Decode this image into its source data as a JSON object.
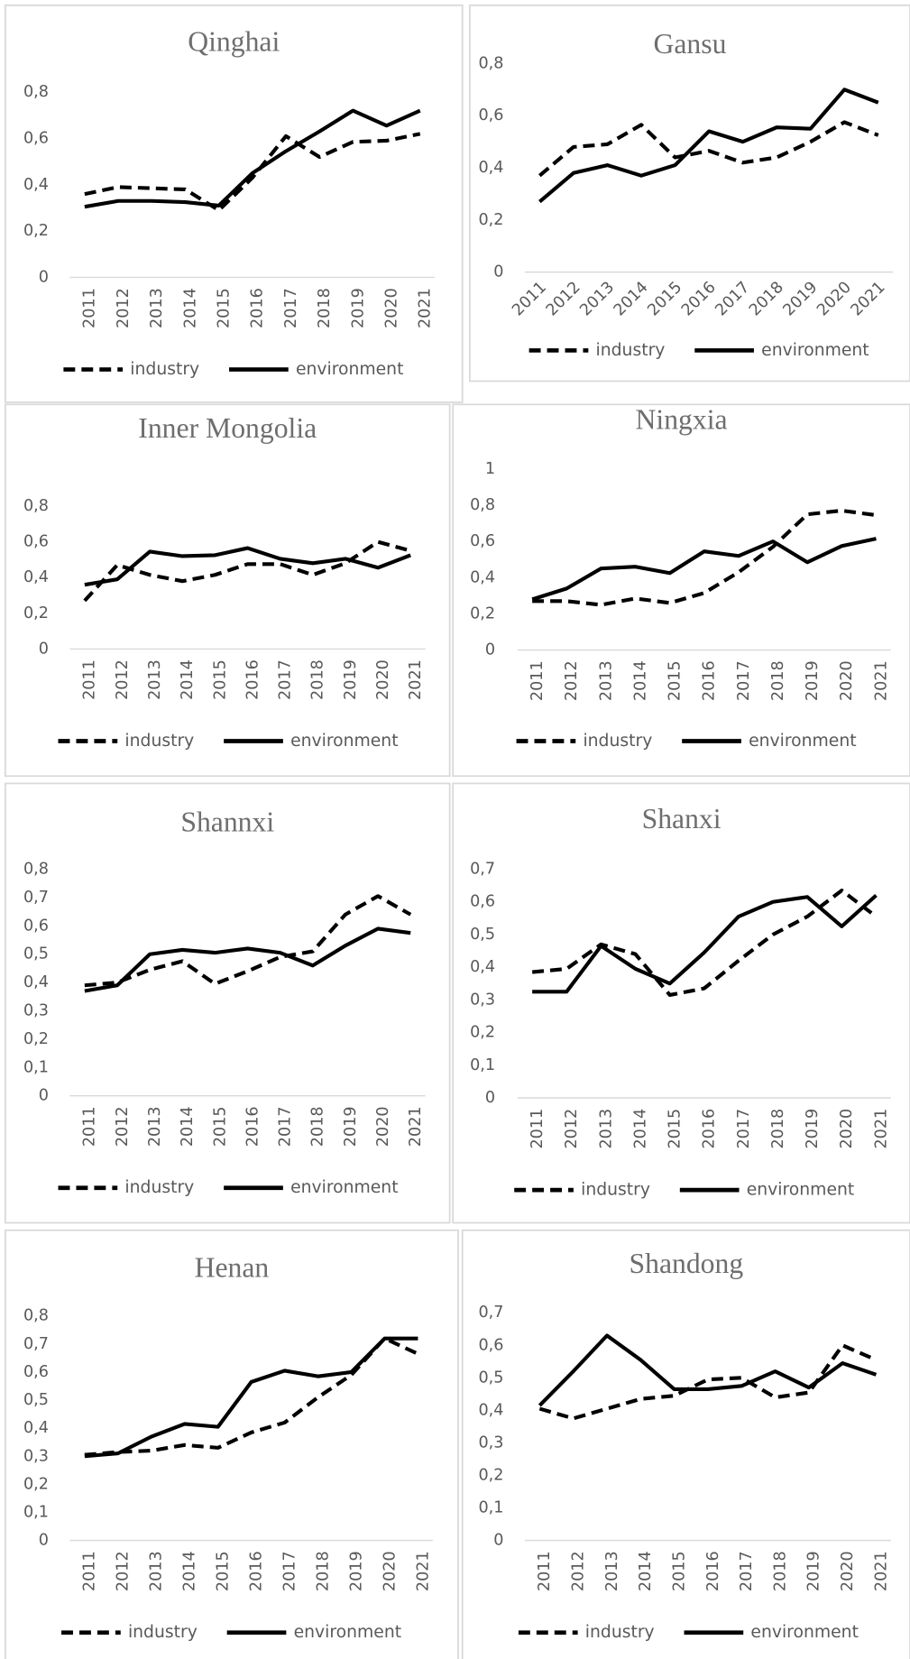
{
  "chart_data": [
    {
      "type": "line",
      "title": "Qinghai",
      "categories": [
        "2011",
        "2012",
        "2013",
        "2014",
        "2015",
        "2016",
        "2017",
        "2018",
        "2019",
        "2020",
        "2021"
      ],
      "series": [
        {
          "name": "industry",
          "color": "#000000",
          "style": "dashed",
          "values": [
            0.36,
            0.39,
            0.385,
            0.38,
            0.29,
            0.43,
            0.61,
            0.52,
            0.585,
            0.59,
            0.62
          ]
        },
        {
          "name": "environment",
          "color": "#000000",
          "style": "solid",
          "values": [
            0.305,
            0.33,
            0.33,
            0.325,
            0.31,
            0.45,
            0.545,
            0.63,
            0.72,
            0.655,
            0.72
          ]
        }
      ],
      "ylim": [
        0,
        0.8
      ],
      "yticks": [
        0,
        {
          "value": 0.2,
          "label": "0,2"
        },
        {
          "value": 0.4,
          "label": "0,4"
        },
        {
          "value": 0.6,
          "label": "0,6"
        },
        {
          "value": 0.8,
          "label": "0,8"
        }
      ]
    },
    {
      "type": "line",
      "title": "Gansu",
      "categories": [
        "2011",
        "2012",
        "2013",
        "2014",
        "2015",
        "2016",
        "2017",
        "2018",
        "2019",
        "2020",
        "2021"
      ],
      "series": [
        {
          "name": "industry",
          "color": "#000000",
          "style": "dashed",
          "values": [
            0.37,
            0.48,
            0.49,
            0.565,
            0.44,
            0.465,
            0.42,
            0.44,
            0.5,
            0.575,
            0.525
          ]
        },
        {
          "name": "environment",
          "color": "#000000",
          "style": "solid",
          "values": [
            0.27,
            0.38,
            0.41,
            0.37,
            0.41,
            0.54,
            0.5,
            0.555,
            0.55,
            0.7,
            0.65
          ]
        }
      ],
      "ylim": [
        0,
        0.8
      ],
      "yticks": [
        0,
        {
          "value": 0.2,
          "label": "0,2"
        },
        {
          "value": 0.4,
          "label": "0,4"
        },
        {
          "value": 0.6,
          "label": "0,6"
        },
        {
          "value": 0.8,
          "label": "0,8"
        }
      ]
    },
    {
      "type": "line",
      "title": "Inner Mongolia",
      "categories": [
        "2011",
        "2012",
        "2013",
        "2014",
        "2015",
        "2016",
        "2017",
        "2018",
        "2019",
        "2020",
        "2021"
      ],
      "series": [
        {
          "name": "industry",
          "color": "#000000",
          "style": "dashed",
          "values": [
            0.27,
            0.47,
            0.415,
            0.38,
            0.415,
            0.475,
            0.475,
            0.415,
            0.48,
            0.6,
            0.55
          ]
        },
        {
          "name": "environment",
          "color": "#000000",
          "style": "solid",
          "values": [
            0.36,
            0.39,
            0.545,
            0.52,
            0.525,
            0.565,
            0.505,
            0.48,
            0.505,
            0.455,
            0.525
          ]
        }
      ],
      "ylim": [
        0,
        0.8
      ],
      "yticks": [
        0,
        {
          "value": 0.2,
          "label": "0,2"
        },
        {
          "value": 0.4,
          "label": "0,4"
        },
        {
          "value": 0.6,
          "label": "0,6"
        },
        {
          "value": 0.8,
          "label": "0,8"
        }
      ]
    },
    {
      "type": "line",
      "title": "Ningxia",
      "categories": [
        "2011",
        "2012",
        "2013",
        "2014",
        "2015",
        "2016",
        "2017",
        "2018",
        "2019",
        "2020",
        "2021"
      ],
      "series": [
        {
          "name": "industry",
          "color": "#000000",
          "style": "dashed",
          "values": [
            0.27,
            0.27,
            0.25,
            0.285,
            0.26,
            0.315,
            0.43,
            0.57,
            0.75,
            0.77,
            0.745
          ]
        },
        {
          "name": "environment",
          "color": "#000000",
          "style": "solid",
          "values": [
            0.28,
            0.34,
            0.45,
            0.46,
            0.425,
            0.545,
            0.52,
            0.6,
            0.485,
            0.575,
            0.615
          ]
        }
      ],
      "ylim": [
        0,
        1
      ],
      "yticks": [
        0,
        {
          "value": 0.2,
          "label": "0,2"
        },
        {
          "value": 0.4,
          "label": "0,4"
        },
        {
          "value": 0.6,
          "label": "0,6"
        },
        {
          "value": 0.8,
          "label": "0,8"
        },
        1
      ]
    },
    {
      "type": "line",
      "title": "Shannxi",
      "categories": [
        "2011",
        "2012",
        "2013",
        "2014",
        "2015",
        "2016",
        "2017",
        "2018",
        "2019",
        "2020",
        "2021"
      ],
      "series": [
        {
          "name": "industry",
          "color": "#000000",
          "style": "dashed",
          "values": [
            0.39,
            0.4,
            0.445,
            0.475,
            0.395,
            0.44,
            0.49,
            0.51,
            0.64,
            0.705,
            0.64
          ]
        },
        {
          "name": "environment",
          "color": "#000000",
          "style": "solid",
          "values": [
            0.37,
            0.39,
            0.5,
            0.515,
            0.505,
            0.52,
            0.505,
            0.46,
            0.53,
            0.59,
            0.575
          ]
        }
      ],
      "ylim": [
        0,
        0.8
      ],
      "yticks": [
        0,
        {
          "value": 0.1,
          "label": "0,1"
        },
        {
          "value": 0.2,
          "label": "0,2"
        },
        {
          "value": 0.3,
          "label": "0,3"
        },
        {
          "value": 0.4,
          "label": "0,4"
        },
        {
          "value": 0.5,
          "label": "0,5"
        },
        {
          "value": 0.6,
          "label": "0,6"
        },
        {
          "value": 0.7,
          "label": "0,7"
        },
        {
          "value": 0.8,
          "label": "0,8"
        }
      ]
    },
    {
      "type": "line",
      "title": "Shanxi",
      "categories": [
        "2011",
        "2012",
        "2013",
        "2014",
        "2015",
        "2016",
        "2017",
        "2018",
        "2019",
        "2020",
        "2021"
      ],
      "series": [
        {
          "name": "industry",
          "color": "#000000",
          "style": "dashed",
          "values": [
            0.385,
            0.395,
            0.47,
            0.44,
            0.315,
            0.335,
            0.42,
            0.5,
            0.555,
            0.635,
            0.555
          ]
        },
        {
          "name": "environment",
          "color": "#000000",
          "style": "solid",
          "values": [
            0.325,
            0.325,
            0.465,
            0.395,
            0.35,
            0.445,
            0.555,
            0.6,
            0.615,
            0.525,
            0.62
          ]
        }
      ],
      "ylim": [
        0,
        0.7
      ],
      "yticks": [
        0,
        {
          "value": 0.1,
          "label": "0,1"
        },
        {
          "value": 0.2,
          "label": "0,2"
        },
        {
          "value": 0.3,
          "label": "0,3"
        },
        {
          "value": 0.4,
          "label": "0,4"
        },
        {
          "value": 0.5,
          "label": "0,5"
        },
        {
          "value": 0.6,
          "label": "0,6"
        },
        {
          "value": 0.7,
          "label": "0,7"
        }
      ]
    },
    {
      "type": "line",
      "title": "Henan",
      "categories": [
        "2011",
        "2012",
        "2013",
        "2014",
        "2015",
        "2016",
        "2017",
        "2018",
        "2019",
        "2020",
        "2021"
      ],
      "series": [
        {
          "name": "industry",
          "color": "#000000",
          "style": "dashed",
          "values": [
            0.305,
            0.315,
            0.32,
            0.34,
            0.33,
            0.385,
            0.42,
            0.51,
            0.59,
            0.72,
            0.665
          ]
        },
        {
          "name": "environment",
          "color": "#000000",
          "style": "solid",
          "values": [
            0.3,
            0.31,
            0.37,
            0.415,
            0.405,
            0.565,
            0.605,
            0.585,
            0.6,
            0.72,
            0.72
          ]
        }
      ],
      "ylim": [
        0,
        0.8
      ],
      "yticks": [
        0,
        {
          "value": 0.1,
          "label": "0,1"
        },
        {
          "value": 0.2,
          "label": "0,2"
        },
        {
          "value": 0.3,
          "label": "0,3"
        },
        {
          "value": 0.4,
          "label": "0,4"
        },
        {
          "value": 0.5,
          "label": "0,5"
        },
        {
          "value": 0.6,
          "label": "0,6"
        },
        {
          "value": 0.7,
          "label": "0,7"
        },
        {
          "value": 0.8,
          "label": "0,8"
        }
      ]
    },
    {
      "type": "line",
      "title": "Shandong",
      "categories": [
        "2011",
        "2012",
        "2013",
        "2014",
        "2015",
        "2016",
        "2017",
        "2018",
        "2019",
        "2020",
        "2021"
      ],
      "series": [
        {
          "name": "industry",
          "color": "#000000",
          "style": "dashed",
          "values": [
            0.405,
            0.375,
            0.405,
            0.435,
            0.445,
            0.495,
            0.5,
            0.44,
            0.455,
            0.6,
            0.555
          ]
        },
        {
          "name": "environment",
          "color": "#000000",
          "style": "solid",
          "values": [
            0.415,
            0.52,
            0.63,
            0.555,
            0.465,
            0.465,
            0.475,
            0.52,
            0.47,
            0.545,
            0.51
          ]
        }
      ],
      "ylim": [
        0,
        0.7
      ],
      "yticks": [
        0,
        {
          "value": 0.1,
          "label": "0,1"
        },
        {
          "value": 0.2,
          "label": "0,2"
        },
        {
          "value": 0.3,
          "label": "0,3"
        },
        {
          "value": 0.4,
          "label": "0,4"
        },
        {
          "value": 0.5,
          "label": "0,5"
        },
        {
          "value": 0.6,
          "label": "0,6"
        },
        {
          "value": 0.7,
          "label": "0,7"
        }
      ]
    }
  ]
}
